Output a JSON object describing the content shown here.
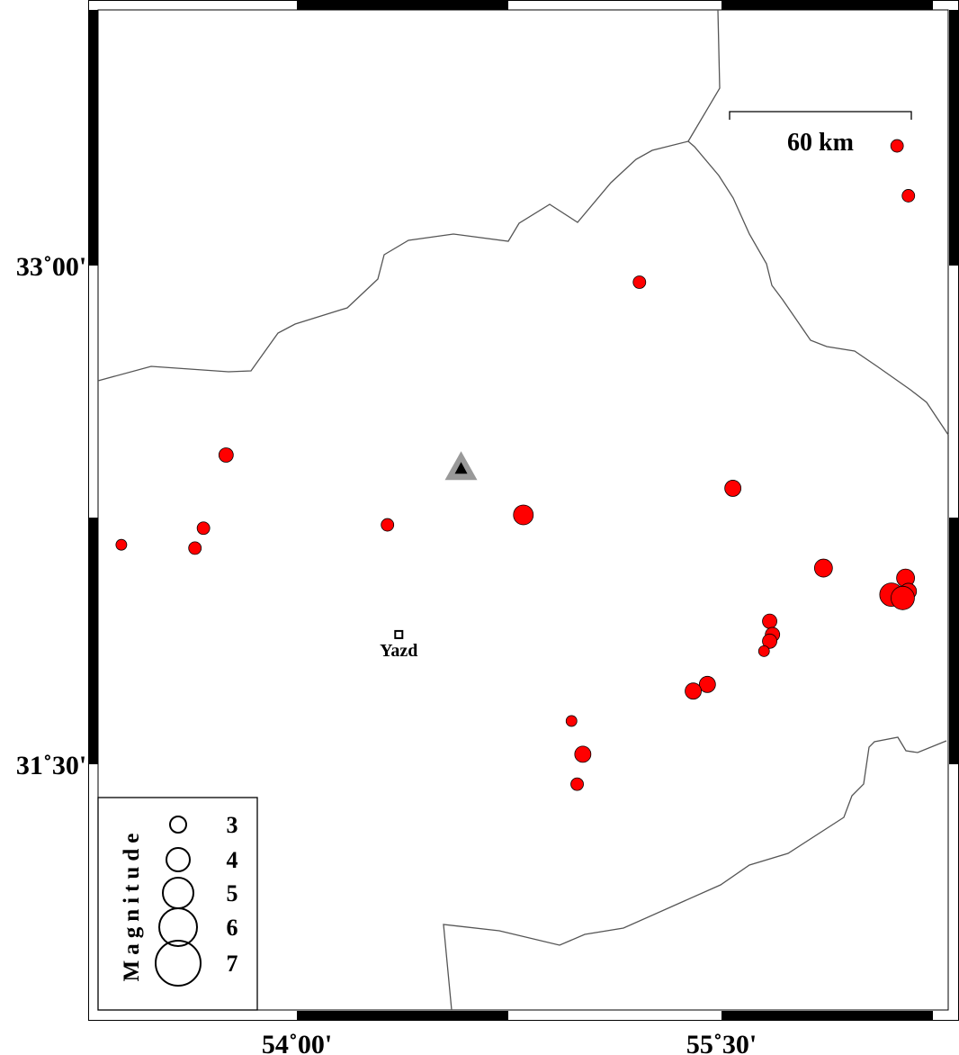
{
  "map": {
    "lon_ticks": [
      {
        "value": 54.0,
        "label": "54˚00'"
      },
      {
        "value": 55.5,
        "label": "55˚30'"
      }
    ],
    "lat_ticks": [
      {
        "value": 33.0,
        "label": "33˚00'"
      },
      {
        "value": 31.5,
        "label": "31˚30'"
      }
    ],
    "scale_bar": {
      "label": "60 km"
    },
    "event_color": "#ff0000",
    "city": {
      "name": "Yazd",
      "lon": 54.36,
      "lat": 31.89
    },
    "station": {
      "icon": "triangle-icon",
      "lon": 54.58,
      "lat": 32.39
    },
    "events": [
      {
        "lon": 56.12,
        "lat": 33.36,
        "mag": 2.5
      },
      {
        "lon": 56.16,
        "lat": 33.21,
        "mag": 2.5
      },
      {
        "lon": 55.21,
        "lat": 32.95,
        "mag": 2.5
      },
      {
        "lon": 53.75,
        "lat": 32.43,
        "mag": 2.75
      },
      {
        "lon": 55.54,
        "lat": 32.33,
        "mag": 3.0
      },
      {
        "lon": 54.8,
        "lat": 32.25,
        "mag": 3.5
      },
      {
        "lon": 53.67,
        "lat": 32.21,
        "mag": 2.5
      },
      {
        "lon": 54.32,
        "lat": 32.22,
        "mag": 2.5
      },
      {
        "lon": 53.38,
        "lat": 32.16,
        "mag": 2.25
      },
      {
        "lon": 53.64,
        "lat": 32.15,
        "mag": 2.5
      },
      {
        "lon": 55.86,
        "lat": 32.09,
        "mag": 3.25
      },
      {
        "lon": 56.15,
        "lat": 32.06,
        "mag": 3.25
      },
      {
        "lon": 56.16,
        "lat": 32.02,
        "mag": 3.0
      },
      {
        "lon": 56.1,
        "lat": 32.01,
        "mag": 4.0
      },
      {
        "lon": 56.14,
        "lat": 32.0,
        "mag": 4.0
      },
      {
        "lon": 55.67,
        "lat": 31.93,
        "mag": 2.75
      },
      {
        "lon": 55.68,
        "lat": 31.89,
        "mag": 2.75
      },
      {
        "lon": 55.67,
        "lat": 31.87,
        "mag": 2.75
      },
      {
        "lon": 55.65,
        "lat": 31.84,
        "mag": 2.25
      },
      {
        "lon": 55.45,
        "lat": 31.74,
        "mag": 3.0
      },
      {
        "lon": 55.4,
        "lat": 31.72,
        "mag": 3.0
      },
      {
        "lon": 54.97,
        "lat": 31.63,
        "mag": 2.25
      },
      {
        "lon": 55.01,
        "lat": 31.53,
        "mag": 3.0
      },
      {
        "lon": 54.99,
        "lat": 31.44,
        "mag": 2.5
      }
    ]
  },
  "legend": {
    "title": "Magnitude",
    "items": [
      {
        "mag": 3,
        "label": "3"
      },
      {
        "mag": 4,
        "label": "4"
      },
      {
        "mag": 5,
        "label": "5"
      },
      {
        "mag": 6,
        "label": "6"
      },
      {
        "mag": 7,
        "label": "7"
      }
    ]
  }
}
